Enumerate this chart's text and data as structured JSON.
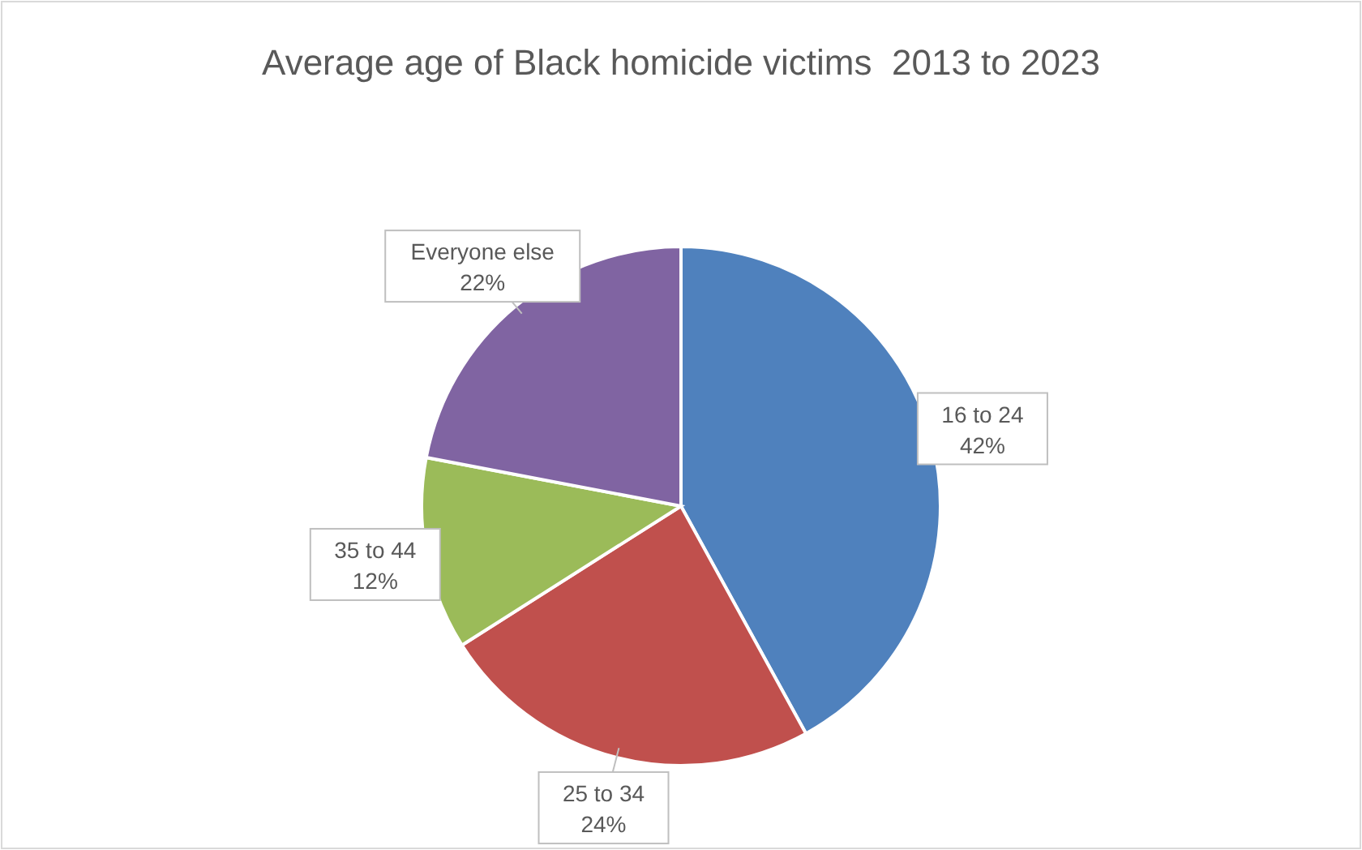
{
  "chart_data": {
    "type": "pie",
    "title": "Average age of Black homicide victims  2013 to 2023",
    "categories": [
      "16 to 24",
      "25 to 34",
      "35 to 44",
      "Everyone else"
    ],
    "values": [
      42,
      24,
      12,
      22
    ],
    "value_labels": [
      "42%",
      "24%",
      "12%",
      "22%"
    ],
    "colors": [
      "#4f81bd",
      "#c0504d",
      "#9bbb59",
      "#8064a2"
    ]
  }
}
